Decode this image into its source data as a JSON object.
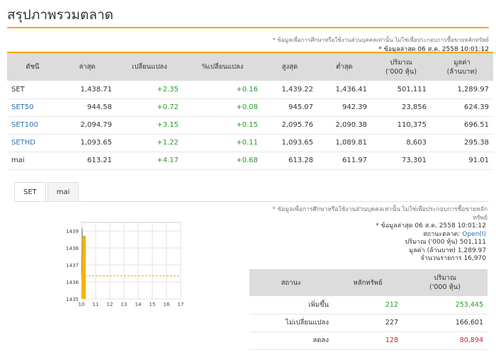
{
  "page": {
    "title": "สรุปภาพรวมตลาด",
    "disclaimer": "* ข้อมูลเพื่อการศึกษาหรือใช้งานส่วนบุคคลเท่านั้น ไม่ใช่เพื่อประกอบการซื้อขายหลักทรัพย์",
    "updated": "* ข้อมูลล่าสุด 06 ส.ค. 2558 10:01:12"
  },
  "market": {
    "headers": {
      "index": "ดัชนี",
      "last": "ล่าสุด",
      "change": "เปลี่ยนแปลง",
      "pct_change": "%เปลี่ยนแปลง",
      "high": "สูงสุด",
      "low": "ต่ำสุด",
      "volume_1": "ปริมาณ",
      "volume_2": "('000 หุ้น)",
      "value_1": "มูลค่า",
      "value_2": "(ล้านบาท)"
    },
    "rows": [
      {
        "name": "SET",
        "last": "1,438.71",
        "change": "+2.35",
        "pct": "+0.16",
        "high": "1,439.22",
        "low": "1,436.41",
        "volume": "501,111",
        "value": "1,289.97"
      },
      {
        "name": "SET50",
        "last": "944.58",
        "change": "+0.72",
        "pct": "+0.08",
        "high": "945.07",
        "low": "942.39",
        "volume": "23,856",
        "value": "624.39"
      },
      {
        "name": "SET100",
        "last": "2,094.79",
        "change": "+3.15",
        "pct": "+0.15",
        "high": "2,095.76",
        "low": "2,090.38",
        "volume": "110,375",
        "value": "696.51"
      },
      {
        "name": "SETHD",
        "last": "1,093.65",
        "change": "+1.22",
        "pct": "+0.11",
        "high": "1,093.65",
        "low": "1,089.81",
        "volume": "8,603",
        "value": "295.38"
      },
      {
        "name": "mai",
        "last": "613.21",
        "change": "+4.17",
        "pct": "+0.68",
        "high": "613.28",
        "low": "611.97",
        "volume": "73,301",
        "value": "91.01"
      }
    ]
  },
  "tabs": [
    {
      "label": "SET"
    },
    {
      "label": "mai"
    }
  ],
  "detail": {
    "disclaimer_1": "* ข้อมูลเพื่อการศึกษาหรือใช้งานส่วนบุคคลเท่านั้น ไม่ใช่เพื่อประกอบการซื้อขายหลัก",
    "disclaimer_2": "ทรัพย์",
    "updated": "* ข้อมูลล่าสุด 06 ส.ค. 2558 10:01:12",
    "status_label": "สถานะตลาด:",
    "status_value": "Open(I)",
    "volume_label": "ปริมาณ ('000 หุ้น)",
    "volume_value": "501,111",
    "value_label": "มูลค่า (ล้านบาท)",
    "value_value": "1,289.97",
    "trades_label": "จำนวนรายการ",
    "trades_value": "16,970"
  },
  "status_table": {
    "headers": {
      "status": "สถานะ",
      "securities": "หลักทรัพย์",
      "volume_1": "ปริมาณ",
      "volume_2": "('000 หุ้น)"
    },
    "rows": [
      {
        "label": "เพิ่มขึ้น",
        "securities": "212",
        "volume": "253,445"
      },
      {
        "label": "ไม่เปลี่ยนแปลง",
        "securities": "227",
        "volume": "166,601"
      },
      {
        "label": "ลดลง",
        "securities": "128",
        "volume": "80,894"
      }
    ]
  },
  "chart_data": {
    "type": "area",
    "x_ticks": [
      "10",
      "11",
      "12",
      "13",
      "14",
      "15",
      "16",
      "17"
    ],
    "y_ticks": [
      "1435",
      "1436",
      "1437",
      "1438",
      "1439"
    ],
    "ylim": [
      1435,
      1439.5
    ],
    "xlim": [
      10,
      17
    ],
    "x": [
      10.0,
      10.05,
      10.08,
      10.1
    ],
    "values": [
      1436.41,
      1439.22,
      1438.6,
      1438.71
    ],
    "prior_close": 1436.36,
    "colors": {
      "fill": "#f5b400",
      "line": "#999999",
      "prior": "#f5a700",
      "grid": "#cccccc"
    }
  }
}
